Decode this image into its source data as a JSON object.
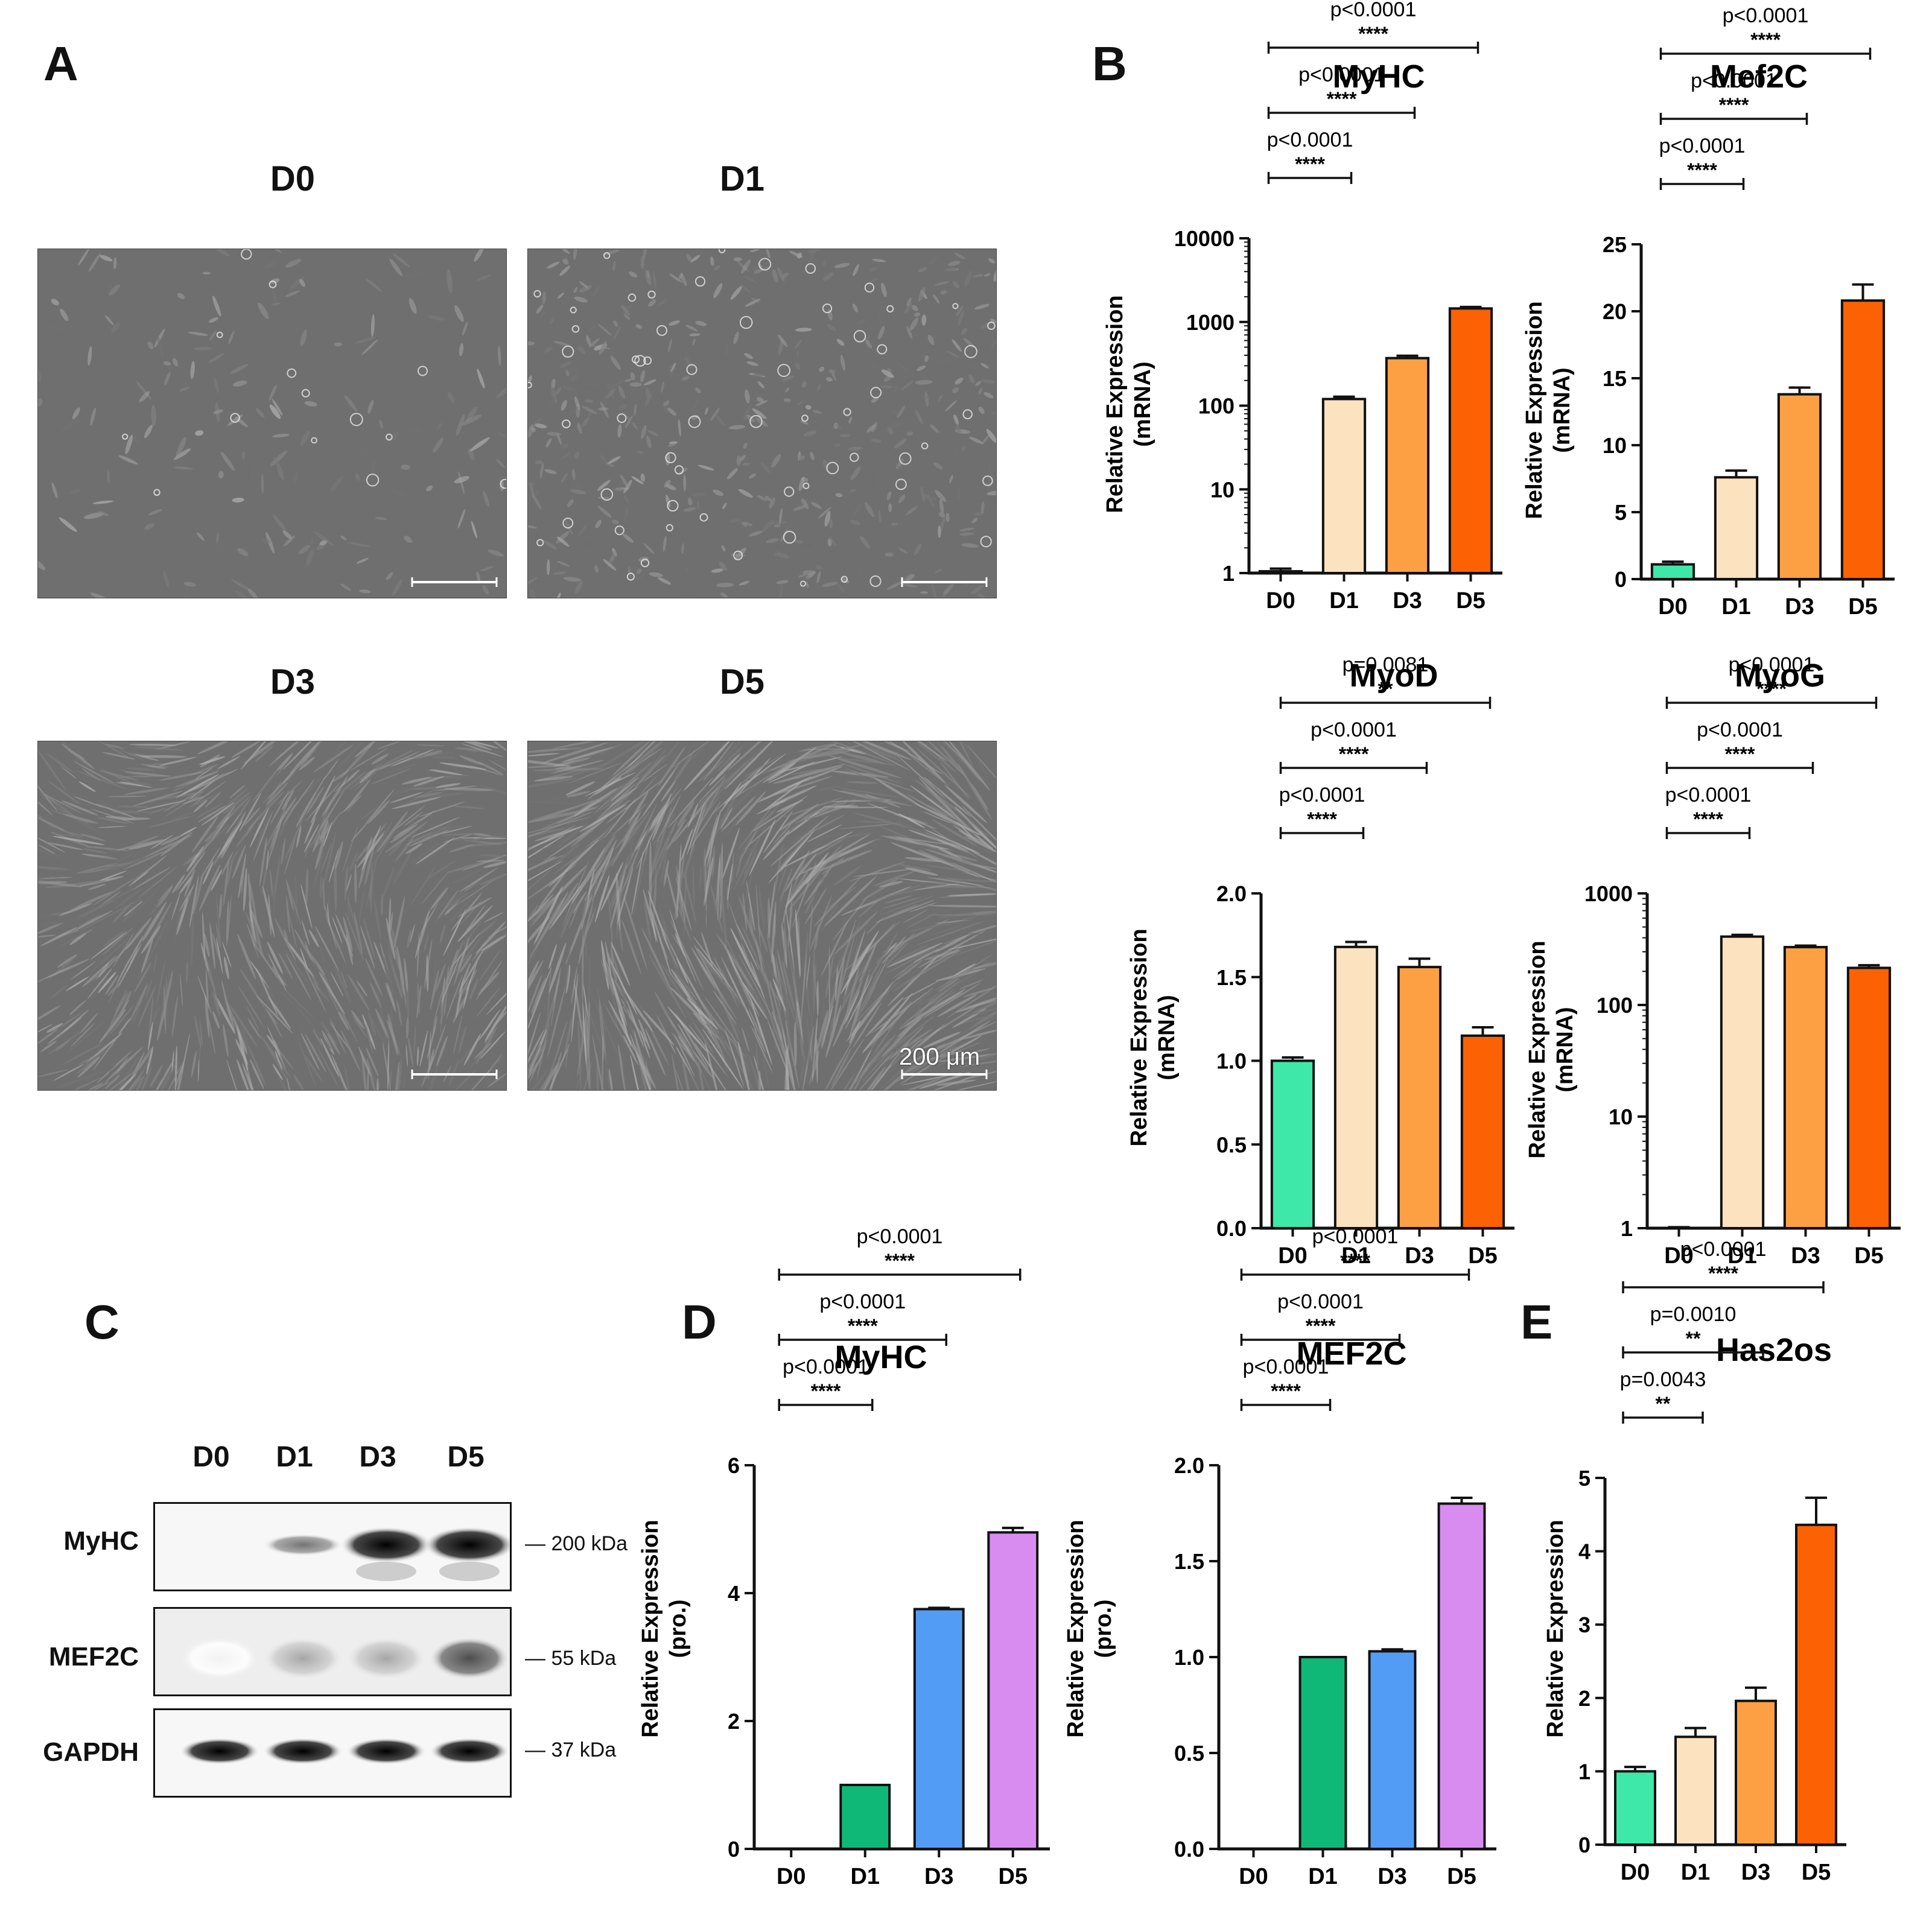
{
  "panels": {
    "A": "A",
    "B": "B",
    "C": "C",
    "D": "D",
    "E": "E"
  },
  "micrographs": [
    {
      "label": "D0",
      "density": "sparse"
    },
    {
      "label": "D1",
      "density": "medium"
    },
    {
      "label": "D3",
      "density": "dense"
    },
    {
      "label": "D5",
      "density": "dense",
      "scale_bar": "200 μm"
    }
  ],
  "western_blot": {
    "lanes": [
      "D0",
      "D1",
      "D3",
      "D5"
    ],
    "rows": [
      {
        "label": "MyHC",
        "kda": "200 kDa",
        "intensity": [
          0.0,
          0.55,
          1.0,
          1.0
        ]
      },
      {
        "label": "MEF2C",
        "kda": "55 kDa",
        "intensity": [
          0.05,
          0.35,
          0.35,
          0.7
        ]
      },
      {
        "label": "GAPDH",
        "kda": "37 kDa",
        "intensity": [
          1.0,
          1.0,
          1.0,
          1.0
        ]
      }
    ]
  },
  "colors": {
    "D0": "#3de8a8",
    "D1": "#fde2c0",
    "D3": "#fda043",
    "D5": "#fc6104",
    "prot_D1": "#10b878",
    "prot_D3": "#529cf6",
    "prot_D5": "#d98cf0"
  },
  "chart_data": [
    {
      "id": "B-MyHC",
      "type": "bar",
      "scale": "log",
      "title": "MyHC",
      "ylabel": [
        "Relative Expression",
        "(mRNA)"
      ],
      "categories": [
        "D0",
        "D1",
        "D3",
        "D5"
      ],
      "values": [
        1.05,
        120,
        370,
        1450
      ],
      "errors": [
        0.08,
        8,
        25,
        60
      ],
      "yticks": [
        1,
        10,
        100,
        1000,
        10000
      ],
      "ytick_labels": [
        "1",
        "10",
        "100",
        "1000",
        "10000"
      ],
      "ylim": [
        1,
        10000
      ],
      "bar_colors": [
        "D0",
        "D1",
        "D3",
        "D5"
      ],
      "comparisons": [
        {
          "from": 0,
          "to": 1,
          "p": "p<0.0001",
          "stars": "****"
        },
        {
          "from": 0,
          "to": 2,
          "p": "p<0.0001",
          "stars": "****"
        },
        {
          "from": 0,
          "to": 3,
          "p": "p<0.0001",
          "stars": "****"
        }
      ]
    },
    {
      "id": "B-Mef2C",
      "type": "bar",
      "scale": "linear",
      "title": "Mef2C",
      "ylabel": [
        "Relative Expression",
        "(mRNA)"
      ],
      "categories": [
        "D0",
        "D1",
        "D3",
        "D5"
      ],
      "values": [
        1.1,
        7.6,
        13.8,
        20.8
      ],
      "errors": [
        0.2,
        0.5,
        0.5,
        1.2
      ],
      "yticks": [
        0,
        5,
        10,
        15,
        20,
        25
      ],
      "ytick_labels": [
        "0",
        "5",
        "10",
        "15",
        "20",
        "25"
      ],
      "ylim": [
        0,
        25
      ],
      "bar_colors": [
        "D0",
        "D1",
        "D3",
        "D5"
      ],
      "comparisons": [
        {
          "from": 0,
          "to": 1,
          "p": "p<0.0001",
          "stars": "****"
        },
        {
          "from": 0,
          "to": 2,
          "p": "p<0.0001",
          "stars": "****"
        },
        {
          "from": 0,
          "to": 3,
          "p": "p<0.0001",
          "stars": "****"
        }
      ]
    },
    {
      "id": "B-MyoD",
      "type": "bar",
      "scale": "linear",
      "title": "MyoD",
      "ylabel": [
        "Relative Expression",
        "(mRNA)"
      ],
      "categories": [
        "D0",
        "D1",
        "D3",
        "D5"
      ],
      "values": [
        1.0,
        1.68,
        1.56,
        1.15
      ],
      "errors": [
        0.02,
        0.03,
        0.05,
        0.05
      ],
      "yticks": [
        0,
        0.5,
        1.0,
        1.5,
        2.0
      ],
      "ytick_labels": [
        "0.0",
        "0.5",
        "1.0",
        "1.5",
        "2.0"
      ],
      "ylim": [
        0,
        2.0
      ],
      "bar_colors": [
        "D0",
        "D1",
        "D3",
        "D5"
      ],
      "comparisons": [
        {
          "from": 0,
          "to": 1,
          "p": "p<0.0001",
          "stars": "****"
        },
        {
          "from": 0,
          "to": 2,
          "p": "p<0.0001",
          "stars": "****"
        },
        {
          "from": 0,
          "to": 3,
          "p": "p=0.0081",
          "stars": "**"
        }
      ]
    },
    {
      "id": "B-MyoG",
      "type": "bar",
      "scale": "log",
      "title": "MyoG",
      "ylabel": [
        "Relative Expression",
        "(mRNA)"
      ],
      "categories": [
        "D0",
        "D1",
        "D3",
        "D5"
      ],
      "values": [
        1.0,
        410,
        330,
        215
      ],
      "errors": [
        0.02,
        15,
        10,
        12
      ],
      "yticks": [
        1,
        10,
        100,
        1000
      ],
      "ytick_labels": [
        "1",
        "10",
        "100",
        "1000"
      ],
      "ylim": [
        1,
        1000
      ],
      "bar_colors": [
        "D0",
        "D1",
        "D3",
        "D5"
      ],
      "comparisons": [
        {
          "from": 0,
          "to": 1,
          "p": "p<0.0001",
          "stars": "****"
        },
        {
          "from": 0,
          "to": 2,
          "p": "p<0.0001",
          "stars": "****"
        },
        {
          "from": 0,
          "to": 3,
          "p": "p<0.0001",
          "stars": "****"
        }
      ]
    },
    {
      "id": "D-MyHC",
      "type": "bar",
      "scale": "linear",
      "title": "MyHC",
      "ylabel": [
        "Relative Expression",
        "(pro.)"
      ],
      "categories": [
        "D0",
        "D1",
        "D3",
        "D5"
      ],
      "values": [
        0,
        1.0,
        3.75,
        4.95
      ],
      "errors": [
        0,
        0,
        0.02,
        0.07
      ],
      "yticks": [
        0,
        2,
        4,
        6
      ],
      "ytick_labels": [
        "0",
        "2",
        "4",
        "6"
      ],
      "ylim": [
        0,
        6
      ],
      "bar_colors": [
        "D0",
        "prot_D1",
        "prot_D3",
        "prot_D5"
      ],
      "comparisons": [
        {
          "from": 0,
          "to": 1,
          "p": "p<0.0001",
          "stars": "****"
        },
        {
          "from": 0,
          "to": 2,
          "p": "p<0.0001",
          "stars": "****"
        },
        {
          "from": 0,
          "to": 3,
          "p": "p<0.0001",
          "stars": "****"
        }
      ]
    },
    {
      "id": "D-MEF2C",
      "type": "bar",
      "scale": "linear",
      "title": "MEF2C",
      "ylabel": [
        "Relative Expression",
        "(pro.)"
      ],
      "categories": [
        "D0",
        "D1",
        "D3",
        "D5"
      ],
      "values": [
        0,
        1.0,
        1.03,
        1.8
      ],
      "errors": [
        0,
        0,
        0.01,
        0.03
      ],
      "yticks": [
        0,
        0.5,
        1.0,
        1.5,
        2.0
      ],
      "ytick_labels": [
        "0.0",
        "0.5",
        "1.0",
        "1.5",
        "2.0"
      ],
      "ylim": [
        0,
        2.0
      ],
      "bar_colors": [
        "D0",
        "prot_D1",
        "prot_D3",
        "prot_D5"
      ],
      "comparisons": [
        {
          "from": 0,
          "to": 1,
          "p": "p<0.0001",
          "stars": "****"
        },
        {
          "from": 0,
          "to": 2,
          "p": "p<0.0001",
          "stars": "****"
        },
        {
          "from": 0,
          "to": 3,
          "p": "p<0.0001",
          "stars": "****"
        }
      ]
    },
    {
      "id": "E-Has2os",
      "type": "bar",
      "scale": "linear",
      "title": "Has2os",
      "ylabel": [
        "Relative Expression"
      ],
      "categories": [
        "D0",
        "D1",
        "D3",
        "D5"
      ],
      "values": [
        1.0,
        1.47,
        1.96,
        4.36
      ],
      "errors": [
        0.06,
        0.12,
        0.18,
        0.37
      ],
      "yticks": [
        0,
        1,
        2,
        3,
        4,
        5
      ],
      "ytick_labels": [
        "0",
        "1",
        "2",
        "3",
        "4",
        "5"
      ],
      "ylim": [
        0,
        5
      ],
      "bar_colors": [
        "D0",
        "D1",
        "D3",
        "D5"
      ],
      "comparisons": [
        {
          "from": 0,
          "to": 1,
          "p": "p=0.0043",
          "stars": "**"
        },
        {
          "from": 0,
          "to": 2,
          "p": "p=0.0010",
          "stars": "**"
        },
        {
          "from": 0,
          "to": 3,
          "p": "p<0.0001",
          "stars": "****"
        }
      ]
    }
  ]
}
